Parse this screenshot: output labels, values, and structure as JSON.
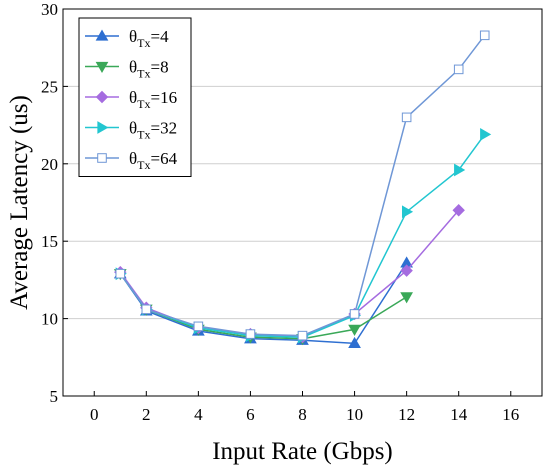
{
  "chart_data": {
    "type": "line",
    "title": "",
    "xlabel": "Input Rate (Gbps)",
    "ylabel": "Average Latency (us)",
    "xlim": [
      -1.2,
      17.2
    ],
    "ylim": [
      5,
      30
    ],
    "xticks": [
      0,
      2,
      4,
      6,
      8,
      10,
      12,
      14,
      16
    ],
    "yticks": [
      5,
      10,
      15,
      20,
      25,
      30
    ],
    "grid": "horizontal",
    "legend_position": "top-left",
    "series": [
      {
        "name": "4",
        "legend_base": "θ",
        "legend_sub": "Tx",
        "legend_suffix": "=4",
        "color": "#2e6fd1",
        "marker": "triangle-up",
        "marker_fill": "filled",
        "x": [
          1,
          2,
          4,
          6,
          8,
          10,
          12
        ],
        "y": [
          12.9,
          10.5,
          9.2,
          8.7,
          8.6,
          8.4,
          13.6
        ]
      },
      {
        "name": "8",
        "legend_base": "θ",
        "legend_sub": "Tx",
        "legend_suffix": "=8",
        "color": "#3aa858",
        "marker": "triangle-down",
        "marker_fill": "filled",
        "x": [
          1,
          2,
          4,
          6,
          8,
          10,
          12
        ],
        "y": [
          12.9,
          10.6,
          9.3,
          8.8,
          8.7,
          9.3,
          11.4
        ]
      },
      {
        "name": "16",
        "legend_base": "θ",
        "legend_sub": "Tx",
        "legend_suffix": "=16",
        "color": "#a56ce0",
        "marker": "diamond",
        "marker_fill": "filled",
        "x": [
          1,
          2,
          4,
          6,
          8,
          10,
          12,
          14
        ],
        "y": [
          13.0,
          10.7,
          9.4,
          9.0,
          8.8,
          10.3,
          13.1,
          17.0
        ]
      },
      {
        "name": "32",
        "legend_base": "θ",
        "legend_sub": "Tx",
        "legend_suffix": "=32",
        "color": "#22c6d0",
        "marker": "triangle-right",
        "marker_fill": "filled",
        "x": [
          1,
          2,
          4,
          6,
          8,
          10,
          12,
          14,
          15
        ],
        "y": [
          12.9,
          10.6,
          9.4,
          8.9,
          8.8,
          10.2,
          16.9,
          19.6,
          21.9
        ]
      },
      {
        "name": "64",
        "legend_base": "θ",
        "legend_sub": "Tx",
        "legend_suffix": "=64",
        "color": "#6f97d6",
        "marker": "square",
        "marker_fill": "open",
        "x": [
          1,
          2,
          4,
          6,
          8,
          10,
          12,
          14,
          15
        ],
        "y": [
          12.9,
          10.6,
          9.5,
          9.0,
          8.9,
          10.3,
          23.0,
          26.1,
          28.3
        ]
      }
    ]
  }
}
